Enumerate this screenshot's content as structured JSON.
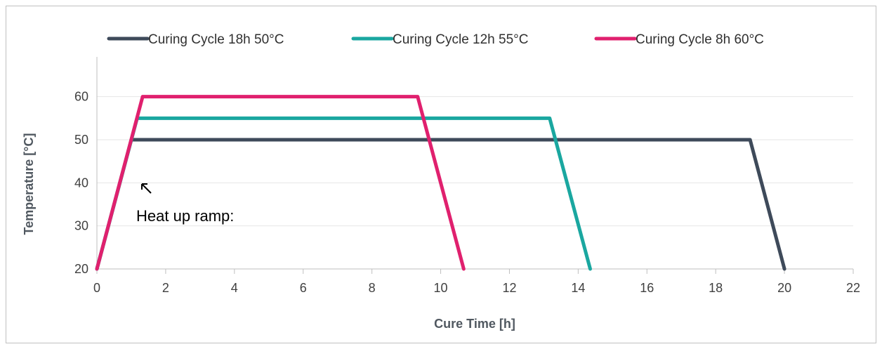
{
  "chart_data": {
    "type": "line",
    "xlabel": "Cure Time [h]",
    "ylabel": "Temperature [°C]",
    "xlim": [
      0,
      22
    ],
    "ylim": [
      20,
      60
    ],
    "xticks": [
      0,
      2,
      4,
      6,
      8,
      10,
      12,
      14,
      16,
      18,
      20,
      22
    ],
    "yticks": [
      20,
      30,
      40,
      50,
      60
    ],
    "grid": "horizontal",
    "legend_position": "top",
    "series": [
      {
        "name": "Curing Cycle 18h 50°C",
        "color": "#3e4a5a",
        "x": [
          0,
          1.0,
          19.0,
          20.0
        ],
        "y": [
          20,
          50,
          50,
          20
        ]
      },
      {
        "name": "Curing Cycle 12h 55°C",
        "color": "#1aa7a0",
        "x": [
          0,
          1.17,
          13.17,
          14.35
        ],
        "y": [
          20,
          55,
          55,
          20
        ]
      },
      {
        "name": "Curing Cycle 8h 60°C",
        "color": "#e0206e",
        "x": [
          0,
          1.33,
          9.33,
          10.67
        ],
        "y": [
          20,
          60,
          60,
          20
        ]
      }
    ],
    "annotations": [
      {
        "text": "Heat up ramp:",
        "arrow": "up-left"
      }
    ]
  }
}
